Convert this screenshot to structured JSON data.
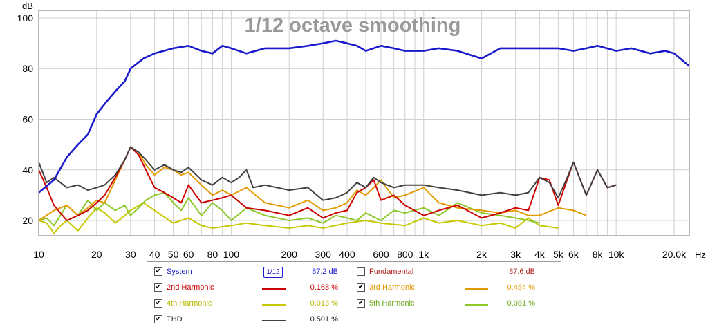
{
  "chart_data": {
    "type": "line",
    "title": "1/12 octave smoothing",
    "ylabel": "dB",
    "xunit": "Hz",
    "xscale": "log",
    "xlim": [
      10,
      24000
    ],
    "ylim": [
      14,
      103
    ],
    "yticks": [
      20,
      40,
      60,
      80,
      100
    ],
    "xticks": [
      {
        "v": 10,
        "label": "10"
      },
      {
        "v": 20,
        "label": "20"
      },
      {
        "v": 30,
        "label": "30"
      },
      {
        "v": 40,
        "label": "40"
      },
      {
        "v": 50,
        "label": "50"
      },
      {
        "v": 60,
        "label": "60"
      },
      {
        "v": 80,
        "label": "80"
      },
      {
        "v": 100,
        "label": "100"
      },
      {
        "v": 200,
        "label": "200"
      },
      {
        "v": 300,
        "label": "300"
      },
      {
        "v": 400,
        "label": "400"
      },
      {
        "v": 600,
        "label": "600"
      },
      {
        "v": 800,
        "label": "800"
      },
      {
        "v": 1000,
        "label": "1k"
      },
      {
        "v": 2000,
        "label": "2k"
      },
      {
        "v": 3000,
        "label": "3k"
      },
      {
        "v": 4000,
        "label": "4k"
      },
      {
        "v": 5000,
        "label": "5k"
      },
      {
        "v": 6000,
        "label": "6k"
      },
      {
        "v": 8000,
        "label": "8k"
      },
      {
        "v": 10000,
        "label": "10k"
      },
      {
        "v": 20000,
        "label": "20.0k"
      }
    ],
    "grid": true,
    "series": [
      {
        "name": "System",
        "color": "#1a1acc",
        "value_text": "87.2 dB",
        "points": [
          [
            10,
            31
          ],
          [
            12,
            36
          ],
          [
            14,
            45
          ],
          [
            16,
            50
          ],
          [
            18,
            54
          ],
          [
            20,
            62
          ],
          [
            22,
            66
          ],
          [
            25,
            71
          ],
          [
            28,
            75
          ],
          [
            30,
            80
          ],
          [
            35,
            84
          ],
          [
            40,
            86
          ],
          [
            50,
            88
          ],
          [
            60,
            89
          ],
          [
            70,
            87
          ],
          [
            80,
            86
          ],
          [
            90,
            89
          ],
          [
            100,
            88
          ],
          [
            120,
            86
          ],
          [
            150,
            88
          ],
          [
            200,
            88
          ],
          [
            250,
            89
          ],
          [
            300,
            90
          ],
          [
            350,
            91
          ],
          [
            400,
            90
          ],
          [
            450,
            89
          ],
          [
            500,
            87
          ],
          [
            600,
            89
          ],
          [
            700,
            88
          ],
          [
            800,
            87
          ],
          [
            1000,
            87
          ],
          [
            1200,
            88
          ],
          [
            1500,
            87
          ],
          [
            2000,
            84
          ],
          [
            2500,
            88
          ],
          [
            3000,
            88
          ],
          [
            4000,
            88
          ],
          [
            5000,
            88
          ],
          [
            6000,
            87
          ],
          [
            7000,
            88
          ],
          [
            8000,
            89
          ],
          [
            10000,
            87
          ],
          [
            12000,
            88
          ],
          [
            15000,
            86
          ],
          [
            18000,
            87
          ],
          [
            20000,
            86
          ],
          [
            24000,
            81
          ]
        ]
      },
      {
        "name": "THD",
        "color": "#404040",
        "value_text": "0.501 %",
        "points": [
          [
            10,
            43
          ],
          [
            11,
            35
          ],
          [
            12,
            37
          ],
          [
            14,
            33
          ],
          [
            16,
            34
          ],
          [
            18,
            32
          ],
          [
            20,
            33
          ],
          [
            22,
            34
          ],
          [
            25,
            38
          ],
          [
            28,
            44
          ],
          [
            30,
            49
          ],
          [
            33,
            47
          ],
          [
            36,
            44
          ],
          [
            40,
            40
          ],
          [
            45,
            42
          ],
          [
            50,
            40
          ],
          [
            55,
            39
          ],
          [
            60,
            41
          ],
          [
            70,
            36
          ],
          [
            80,
            34
          ],
          [
            90,
            37
          ],
          [
            100,
            35
          ],
          [
            110,
            37
          ],
          [
            120,
            40
          ],
          [
            130,
            33
          ],
          [
            150,
            34
          ],
          [
            200,
            32
          ],
          [
            250,
            33
          ],
          [
            300,
            28
          ],
          [
            350,
            29
          ],
          [
            400,
            31
          ],
          [
            450,
            35
          ],
          [
            500,
            33
          ],
          [
            550,
            37
          ],
          [
            600,
            35
          ],
          [
            700,
            33
          ],
          [
            800,
            34
          ],
          [
            1000,
            34
          ],
          [
            1200,
            33
          ],
          [
            1500,
            32
          ],
          [
            2000,
            30
          ],
          [
            2500,
            31
          ],
          [
            3000,
            30
          ],
          [
            3500,
            31
          ],
          [
            4000,
            37
          ],
          [
            4500,
            35
          ],
          [
            5000,
            29
          ],
          [
            5500,
            36
          ],
          [
            6000,
            43
          ],
          [
            7000,
            30
          ],
          [
            8000,
            40
          ],
          [
            9000,
            33
          ],
          [
            10000,
            34
          ]
        ]
      },
      {
        "name": "2nd Harmonic",
        "color": "#cc0000",
        "value_text": "0.168 %",
        "points": [
          [
            10,
            40
          ],
          [
            11,
            33
          ],
          [
            12,
            26
          ],
          [
            14,
            20
          ],
          [
            16,
            22
          ],
          [
            18,
            24
          ],
          [
            20,
            27
          ],
          [
            22,
            30
          ],
          [
            25,
            37
          ],
          [
            28,
            44
          ],
          [
            30,
            49
          ],
          [
            33,
            46
          ],
          [
            36,
            40
          ],
          [
            40,
            33
          ],
          [
            45,
            31
          ],
          [
            50,
            29
          ],
          [
            55,
            27
          ],
          [
            60,
            34
          ],
          [
            70,
            27
          ],
          [
            80,
            28
          ],
          [
            90,
            29
          ],
          [
            100,
            30
          ],
          [
            120,
            25
          ],
          [
            150,
            24
          ],
          [
            200,
            22
          ],
          [
            250,
            25
          ],
          [
            300,
            21
          ],
          [
            350,
            23
          ],
          [
            400,
            24
          ],
          [
            450,
            31
          ],
          [
            500,
            33
          ],
          [
            550,
            36
          ],
          [
            600,
            28
          ],
          [
            700,
            30
          ],
          [
            800,
            26
          ],
          [
            1000,
            22
          ],
          [
            1200,
            24
          ],
          [
            1500,
            26
          ],
          [
            2000,
            21
          ],
          [
            2500,
            23
          ],
          [
            3000,
            25
          ],
          [
            3500,
            24
          ],
          [
            4000,
            37
          ],
          [
            4500,
            36
          ],
          [
            5000,
            26
          ],
          [
            5500,
            35
          ],
          [
            6000,
            43
          ],
          [
            7000,
            30
          ],
          [
            8000,
            40
          ],
          [
            9000,
            33
          ],
          [
            10000,
            34
          ]
        ]
      },
      {
        "name": "3rd Harmonic",
        "color": "#e39a00",
        "value_text": "0.454 %",
        "points": [
          [
            10,
            20
          ],
          [
            12,
            24
          ],
          [
            14,
            26
          ],
          [
            16,
            22
          ],
          [
            18,
            25
          ],
          [
            20,
            28
          ],
          [
            22,
            27
          ],
          [
            25,
            36
          ],
          [
            28,
            44
          ],
          [
            30,
            49
          ],
          [
            33,
            47
          ],
          [
            36,
            42
          ],
          [
            40,
            38
          ],
          [
            45,
            41
          ],
          [
            50,
            40
          ],
          [
            55,
            38
          ],
          [
            60,
            39
          ],
          [
            70,
            34
          ],
          [
            80,
            30
          ],
          [
            90,
            32
          ],
          [
            100,
            30
          ],
          [
            120,
            33
          ],
          [
            150,
            27
          ],
          [
            200,
            25
          ],
          [
            250,
            28
          ],
          [
            300,
            24
          ],
          [
            350,
            25
          ],
          [
            400,
            27
          ],
          [
            450,
            32
          ],
          [
            500,
            30
          ],
          [
            550,
            33
          ],
          [
            600,
            36
          ],
          [
            700,
            29
          ],
          [
            800,
            30
          ],
          [
            1000,
            33
          ],
          [
            1200,
            27
          ],
          [
            1500,
            25
          ],
          [
            2000,
            24
          ],
          [
            2500,
            23
          ],
          [
            3000,
            24
          ],
          [
            3500,
            22
          ],
          [
            4000,
            22
          ],
          [
            5000,
            25
          ],
          [
            6000,
            24
          ],
          [
            7000,
            22
          ]
        ]
      },
      {
        "name": "4th Harmonic",
        "color": "#c8c800",
        "value_text": "0.013 %",
        "points": [
          [
            10,
            20
          ],
          [
            11,
            19
          ],
          [
            12,
            15
          ],
          [
            13,
            18
          ],
          [
            14,
            20
          ],
          [
            16,
            16
          ],
          [
            18,
            21
          ],
          [
            20,
            25
          ],
          [
            22,
            23
          ],
          [
            25,
            19
          ],
          [
            28,
            22
          ],
          [
            30,
            24
          ],
          [
            35,
            27
          ],
          [
            40,
            24
          ],
          [
            50,
            19
          ],
          [
            60,
            21
          ],
          [
            70,
            18
          ],
          [
            80,
            17
          ],
          [
            100,
            18
          ],
          [
            120,
            19
          ],
          [
            150,
            18
          ],
          [
            200,
            17
          ],
          [
            250,
            18
          ],
          [
            300,
            17
          ],
          [
            400,
            19
          ],
          [
            500,
            20
          ],
          [
            600,
            19
          ],
          [
            800,
            18
          ],
          [
            1000,
            21
          ],
          [
            1200,
            19
          ],
          [
            1500,
            20
          ],
          [
            2000,
            18
          ],
          [
            2500,
            19
          ],
          [
            3000,
            17
          ],
          [
            3500,
            21
          ],
          [
            4000,
            18
          ],
          [
            5000,
            17
          ]
        ]
      },
      {
        "name": "5th Harmonic",
        "color": "#8cc828",
        "value_text": "0.081 %",
        "points": [
          [
            10,
            20
          ],
          [
            11,
            21
          ],
          [
            12,
            18
          ],
          [
            14,
            26
          ],
          [
            16,
            22
          ],
          [
            18,
            28
          ],
          [
            20,
            24
          ],
          [
            22,
            27
          ],
          [
            25,
            24
          ],
          [
            28,
            26
          ],
          [
            30,
            22
          ],
          [
            33,
            25
          ],
          [
            36,
            28
          ],
          [
            40,
            30
          ],
          [
            45,
            31
          ],
          [
            50,
            27
          ],
          [
            55,
            24
          ],
          [
            60,
            29
          ],
          [
            70,
            22
          ],
          [
            80,
            27
          ],
          [
            90,
            24
          ],
          [
            100,
            20
          ],
          [
            120,
            25
          ],
          [
            150,
            22
          ],
          [
            200,
            20
          ],
          [
            250,
            21
          ],
          [
            300,
            19
          ],
          [
            350,
            22
          ],
          [
            400,
            21
          ],
          [
            450,
            20
          ],
          [
            500,
            23
          ],
          [
            600,
            20
          ],
          [
            700,
            24
          ],
          [
            800,
            23
          ],
          [
            1000,
            25
          ],
          [
            1200,
            22
          ],
          [
            1500,
            27
          ],
          [
            2000,
            23
          ],
          [
            2500,
            22
          ],
          [
            3000,
            21
          ],
          [
            3500,
            20
          ],
          [
            4000,
            19
          ]
        ]
      }
    ]
  },
  "legend": {
    "rows": [
      {
        "id": "system",
        "label": "System",
        "checked": true,
        "color": "#1a1acc",
        "swatch": "badge",
        "badge_text": "1/12",
        "value": "87.2 dB",
        "text_color": "#1a1acc"
      },
      {
        "id": "fundamental",
        "label": "Fundamental",
        "checked": false,
        "color": "#b22222",
        "swatch": "none",
        "value": "87.6 dB",
        "text_color": "#b22222"
      },
      {
        "id": "h2",
        "label": "2nd Harmonic",
        "checked": true,
        "color": "#cc0000",
        "swatch": "line",
        "value": "0.168 %",
        "text_color": "#cc0000"
      },
      {
        "id": "h3",
        "label": "3rd Harmonic",
        "checked": true,
        "color": "#e39a00",
        "swatch": "line",
        "value": "0.454 %",
        "text_color": "#e39a00"
      },
      {
        "id": "h4",
        "label": "4th Harmonic",
        "checked": true,
        "color": "#c8c800",
        "swatch": "line",
        "value": "0.013 %",
        "text_color": "#b8b800"
      },
      {
        "id": "h5",
        "label": "5th Harmonic",
        "checked": true,
        "color": "#8cc828",
        "swatch": "line",
        "value": "0.081 %",
        "text_color": "#6aa818"
      },
      {
        "id": "thd",
        "label": "THD",
        "checked": true,
        "color": "#404040",
        "swatch": "line",
        "value": "0.501 %",
        "text_color": "#202020"
      }
    ]
  }
}
